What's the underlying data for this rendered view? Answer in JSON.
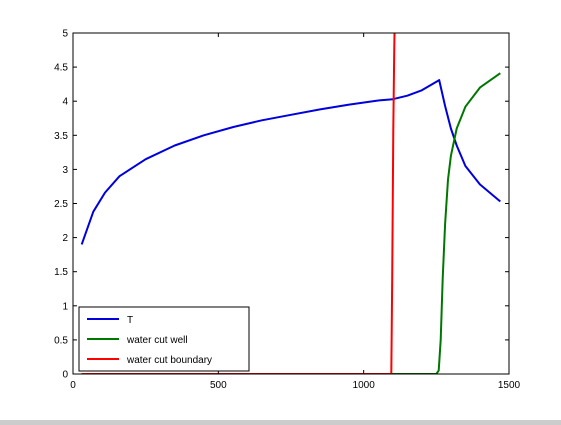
{
  "chart_data": {
    "type": "line",
    "title": "",
    "xlabel": "",
    "ylabel": "",
    "xlim": [
      0,
      1500
    ],
    "ylim": [
      0,
      5
    ],
    "x_ticks": [
      0,
      500,
      1000,
      1500
    ],
    "y_ticks": [
      0,
      0.5,
      1,
      1.5,
      2,
      2.5,
      3,
      3.5,
      4,
      4.5,
      5
    ],
    "x_tick_labels": [
      "0",
      "500",
      "1000",
      "1500"
    ],
    "y_tick_labels": [
      "0",
      "0.5",
      "1",
      "1.5",
      "2",
      "2.5",
      "3",
      "3.5",
      "4",
      "4.5",
      "5"
    ],
    "grid": false,
    "legend_position": "bottom-left",
    "series": [
      {
        "name": "T",
        "color": "#0000dd",
        "x": [
          30,
          70,
          110,
          160,
          250,
          350,
          450,
          550,
          650,
          750,
          850,
          950,
          1050,
          1100,
          1150,
          1200,
          1240,
          1260,
          1280,
          1300,
          1320,
          1350,
          1400,
          1470
        ],
        "y": [
          1.9,
          2.38,
          2.66,
          2.9,
          3.15,
          3.35,
          3.5,
          3.62,
          3.72,
          3.8,
          3.88,
          3.95,
          4.01,
          4.03,
          4.08,
          4.16,
          4.26,
          4.31,
          3.93,
          3.6,
          3.35,
          3.05,
          2.78,
          2.53
        ]
      },
      {
        "name": "water cut well",
        "color": "#007700",
        "x": [
          30,
          1250,
          1258,
          1265,
          1272,
          1280,
          1290,
          1300,
          1320,
          1350,
          1400,
          1470
        ],
        "y": [
          0,
          0,
          0.05,
          0.5,
          1.4,
          2.2,
          2.85,
          3.2,
          3.6,
          3.92,
          4.2,
          4.41
        ]
      },
      {
        "name": "water cut boundary",
        "color": "#ff0000",
        "x": [
          30,
          1095,
          1098,
          1102,
          1105,
          1106
        ],
        "y": [
          0,
          0,
          1.4,
          3.6,
          4.7,
          5
        ]
      }
    ]
  }
}
